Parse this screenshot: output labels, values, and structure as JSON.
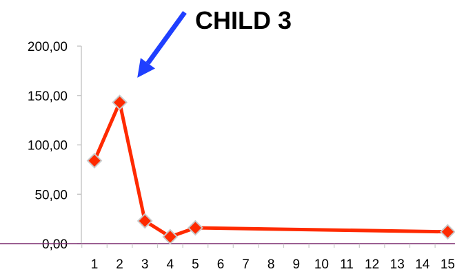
{
  "chart_data": {
    "type": "line",
    "title": "CHILD 3",
    "xlabel": "",
    "ylabel": "",
    "x": [
      1,
      2,
      3,
      4,
      5,
      15
    ],
    "x_ticks": [
      "1",
      "2",
      "3",
      "4",
      "5",
      "6",
      "7",
      "8",
      "9",
      "10",
      "11",
      "12",
      "13",
      "14",
      "15"
    ],
    "y_ticks": [
      "0,00",
      "50,00",
      "100,00",
      "150,00",
      "200,00"
    ],
    "ylim": [
      0,
      200
    ],
    "xlim": [
      1,
      15
    ],
    "grid": false,
    "series": [
      {
        "values": [
          84,
          143,
          23,
          7,
          16,
          12
        ]
      }
    ],
    "annotations": [
      {
        "type": "arrow",
        "points_to": {
          "x": 2.7,
          "y": 168
        }
      }
    ],
    "colors": {
      "line": "#ff2a00",
      "marker_fill": "#ff2a00",
      "marker_stroke": "#c8c8c8",
      "arrow": "#1f3fff",
      "x_axis": "#7a2a6e",
      "y_axis": "#c8c8c8"
    }
  }
}
